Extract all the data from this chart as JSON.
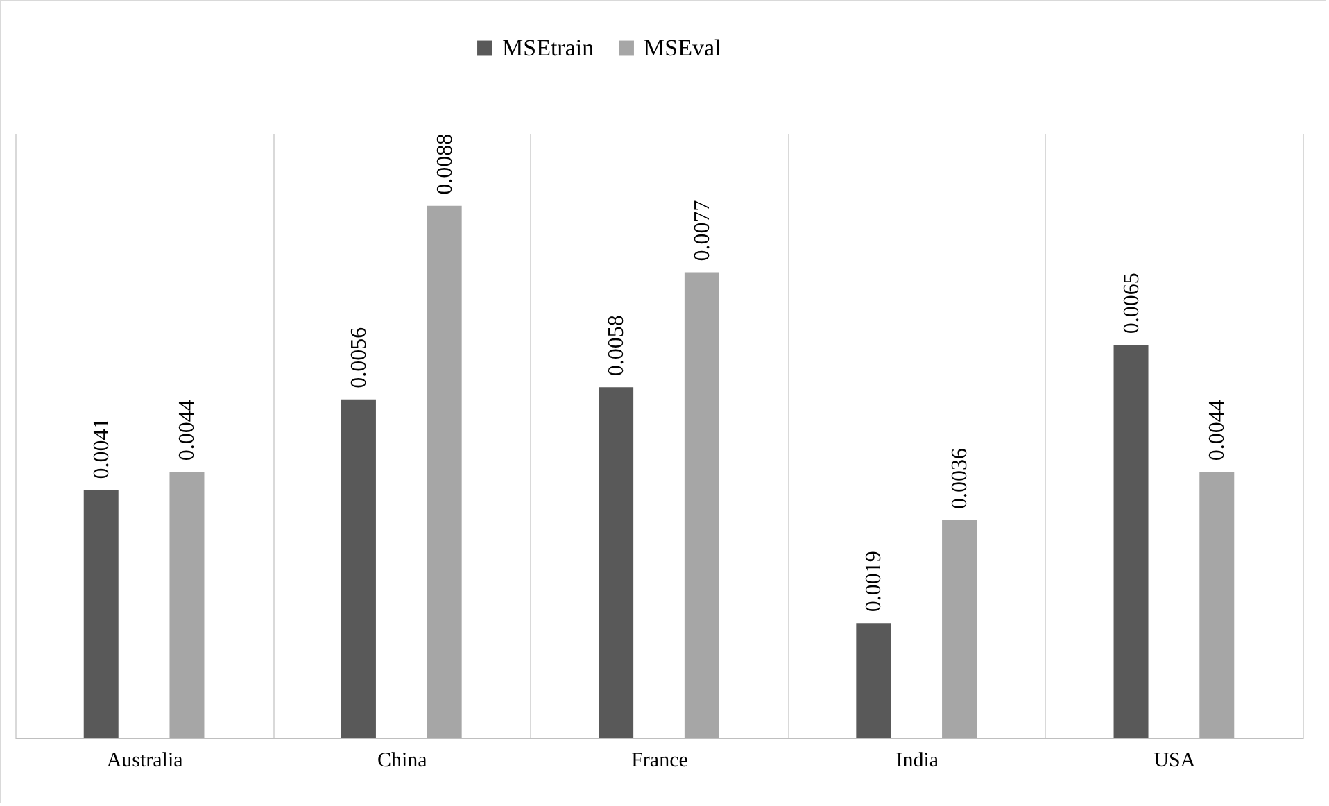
{
  "chart_data": {
    "type": "bar",
    "categories": [
      "Australia",
      "China",
      "France",
      "India",
      "USA"
    ],
    "series": [
      {
        "name": "MSEtrain",
        "color": "#595959",
        "values": [
          0.0041,
          0.0056,
          0.0058,
          0.0019,
          0.0065
        ]
      },
      {
        "name": "MSEval",
        "color": "#a6a6a6",
        "values": [
          0.0044,
          0.0088,
          0.0077,
          0.0036,
          0.0044
        ]
      }
    ],
    "ylim": [
      0,
      0.01
    ],
    "data_labels": true,
    "grid": "x",
    "legend": "top",
    "tick_labels": "x"
  }
}
